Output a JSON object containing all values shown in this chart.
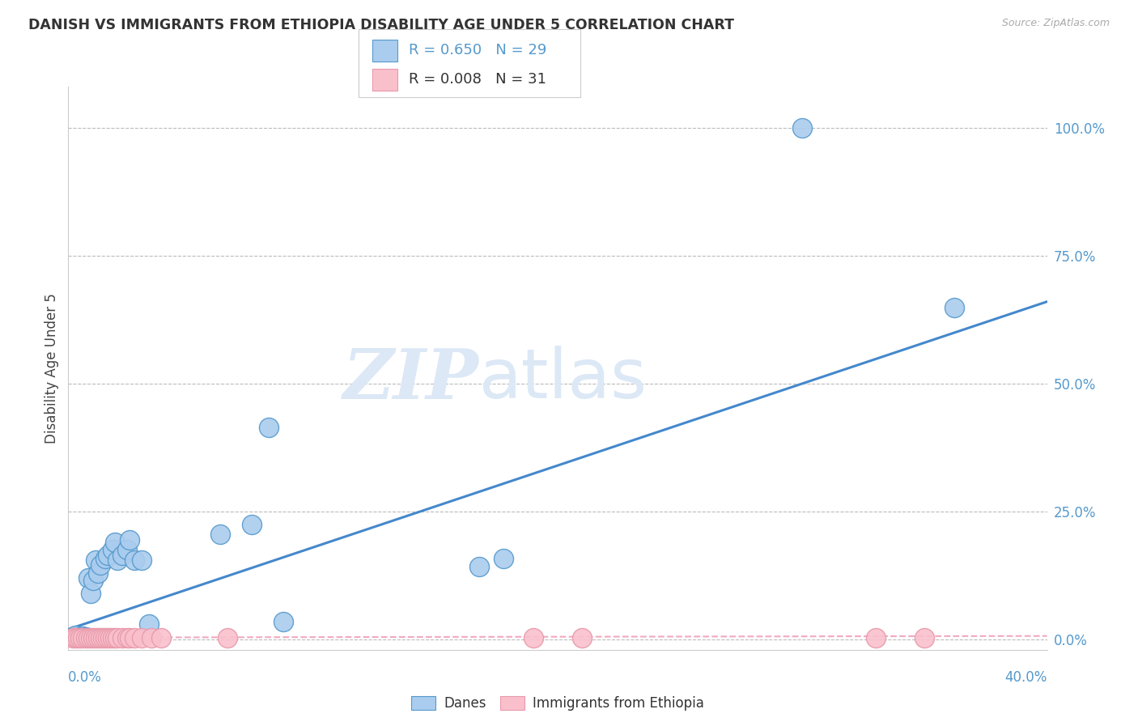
{
  "title": "DANISH VS IMMIGRANTS FROM ETHIOPIA DISABILITY AGE UNDER 5 CORRELATION CHART",
  "source": "Source: ZipAtlas.com",
  "ylabel": "Disability Age Under 5",
  "xlim": [
    0.0,
    0.4
  ],
  "ylim": [
    -0.02,
    1.08
  ],
  "ytick_labels": [
    "0.0%",
    "25.0%",
    "50.0%",
    "75.0%",
    "100.0%"
  ],
  "ytick_values": [
    0.0,
    0.25,
    0.5,
    0.75,
    1.0
  ],
  "xtick_label_left": "0.0%",
  "xtick_label_right": "40.0%",
  "background_color": "#ffffff",
  "grid_color": "#bbbbbb",
  "watermark_zip": "ZIP",
  "watermark_atlas": "atlas",
  "danes_color": "#aaccee",
  "danes_edge_color": "#5599cc",
  "ethiopia_color": "#f9c0cc",
  "ethiopia_edge_color": "#e899aa",
  "line_color_danes": "#4488cc",
  "line_color_ethiopia": "#f0a0b8",
  "danes_R": "0.650",
  "danes_N": "29",
  "ethiopia_R": "0.008",
  "ethiopia_N": "31",
  "danes_scatter_x": [
    0.003,
    0.005,
    0.006,
    0.007,
    0.008,
    0.009,
    0.01,
    0.011,
    0.012,
    0.013,
    0.015,
    0.016,
    0.018,
    0.019,
    0.02,
    0.022,
    0.024,
    0.025,
    0.027,
    0.03,
    0.033,
    0.062,
    0.075,
    0.082,
    0.088,
    0.168,
    0.178,
    0.3,
    0.362
  ],
  "danes_scatter_y": [
    0.008,
    0.005,
    0.006,
    0.005,
    0.12,
    0.09,
    0.115,
    0.155,
    0.13,
    0.145,
    0.158,
    0.165,
    0.175,
    0.19,
    0.155,
    0.165,
    0.175,
    0.195,
    0.155,
    0.155,
    0.03,
    0.205,
    0.225,
    0.415,
    0.035,
    0.142,
    0.158,
    1.0,
    0.648
  ],
  "ethiopia_scatter_x": [
    0.002,
    0.003,
    0.004,
    0.005,
    0.006,
    0.007,
    0.008,
    0.009,
    0.01,
    0.011,
    0.012,
    0.013,
    0.014,
    0.015,
    0.016,
    0.017,
    0.018,
    0.019,
    0.02,
    0.022,
    0.024,
    0.025,
    0.027,
    0.03,
    0.034,
    0.038,
    0.065,
    0.19,
    0.21,
    0.33,
    0.35
  ],
  "ethiopia_scatter_y": [
    0.004,
    0.004,
    0.004,
    0.004,
    0.004,
    0.004,
    0.004,
    0.004,
    0.004,
    0.004,
    0.004,
    0.004,
    0.004,
    0.004,
    0.004,
    0.004,
    0.004,
    0.004,
    0.004,
    0.004,
    0.004,
    0.004,
    0.004,
    0.004,
    0.004,
    0.004,
    0.004,
    0.004,
    0.004,
    0.004,
    0.004
  ],
  "danes_line_x": [
    0.0,
    0.4
  ],
  "danes_line_y": [
    0.02,
    0.66
  ],
  "ethiopia_line_x": [
    0.0,
    0.4
  ],
  "ethiopia_line_y": [
    0.004,
    0.007
  ]
}
